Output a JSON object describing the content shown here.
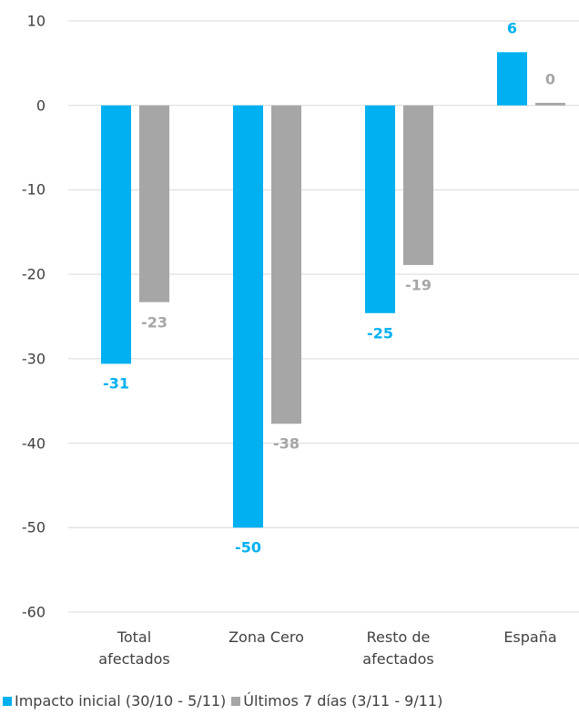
{
  "chart_data": {
    "type": "bar",
    "categories": [
      "Total afectados",
      "Zona Cero",
      "Resto de afectados",
      "España"
    ],
    "series": [
      {
        "name": "Impacto inicial (30/10 - 5/11)",
        "color": "#00b0f0",
        "values": [
          -30.6,
          -50,
          -24.6,
          6.3
        ],
        "value_labels": [
          "-31",
          "-50",
          "-25",
          "6"
        ]
      },
      {
        "name": "Últimos 7 días (3/11 - 9/11)",
        "color": "#a6a6a6",
        "values": [
          -23.3,
          -37.7,
          -18.9,
          0.3
        ],
        "value_labels": [
          "-23",
          "-38",
          "-19",
          "0"
        ]
      }
    ],
    "ylim": [
      -60,
      10
    ],
    "yticks": [
      -60,
      -50,
      -40,
      -30,
      -20,
      -10,
      0,
      10
    ],
    "grid": true,
    "legend": "bottom"
  }
}
